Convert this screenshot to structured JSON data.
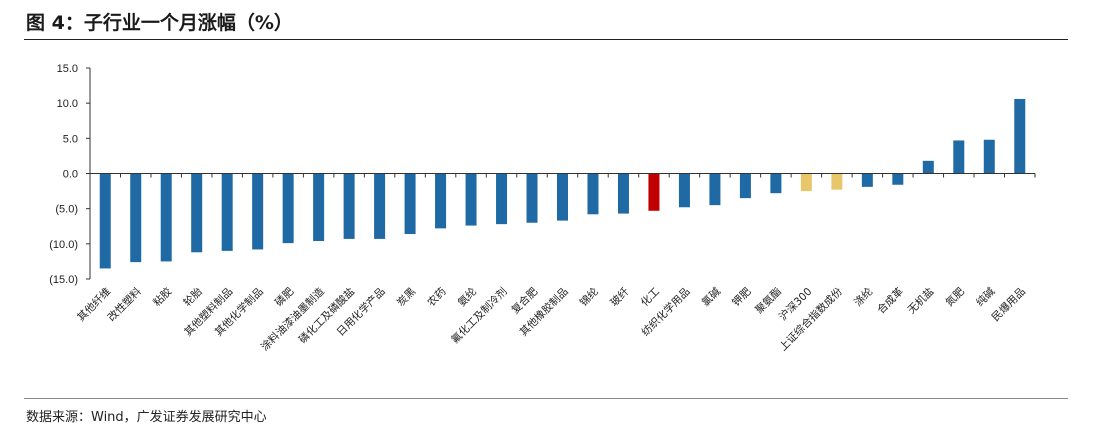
{
  "figure": {
    "title": "图 4：子行业一个月涨幅（%）",
    "source": "数据来源：Wind，广发证券发展研究中心"
  },
  "colors": {
    "default": "#1f6aa5",
    "highlight": "#c00000",
    "index": "#e8c76a"
  },
  "chart_data": {
    "type": "bar",
    "title": "",
    "xlabel": "",
    "ylabel": "",
    "ylim": [
      -15,
      15
    ],
    "yticks": [
      15,
      10,
      5,
      0,
      -5,
      -10,
      -15
    ],
    "ytick_labels": [
      "15.0",
      "10.0",
      "5.0",
      "0.0",
      "(5.0)",
      "(10.0)",
      "(15.0)"
    ],
    "grid": false,
    "legend": "none",
    "categories": [
      "其他纤维",
      "改性塑料",
      "粘胶",
      "轮胎",
      "其他塑料制品",
      "其他化学制品",
      "磷肥",
      "涂料油漆油墨制造",
      "磷化工及磷酸盐",
      "日用化学产品",
      "炭黑",
      "农药",
      "氨纶",
      "氟化工及制冷剂",
      "复合肥",
      "其他橡胶制品",
      "锦纶",
      "玻纤",
      "化工",
      "纺织化学用品",
      "氯碱",
      "钾肥",
      "聚氨酯",
      "沪深300",
      "上证综合指数成份",
      "涤纶",
      "合成革",
      "无机盐",
      "氮肥",
      "纯碱",
      "民爆用品"
    ],
    "values": [
      -13.5,
      -12.6,
      -12.5,
      -11.2,
      -11.0,
      -10.8,
      -9.9,
      -9.6,
      -9.3,
      -9.3,
      -8.6,
      -7.8,
      -7.4,
      -7.2,
      -7.0,
      -6.7,
      -5.8,
      -5.7,
      -5.3,
      -4.8,
      -4.5,
      -3.5,
      -2.8,
      -2.5,
      -2.3,
      -1.9,
      -1.6,
      1.8,
      4.7,
      4.8,
      10.6
    ],
    "bar_colors": [
      "default",
      "default",
      "default",
      "default",
      "default",
      "default",
      "default",
      "default",
      "default",
      "default",
      "default",
      "default",
      "default",
      "default",
      "default",
      "default",
      "default",
      "default",
      "highlight",
      "default",
      "default",
      "default",
      "default",
      "index",
      "index",
      "default",
      "default",
      "default",
      "default",
      "default",
      "default"
    ]
  }
}
